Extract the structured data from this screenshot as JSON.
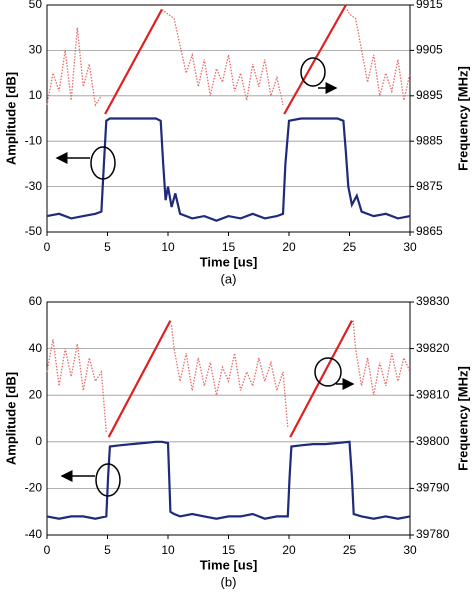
{
  "chart_data": [
    {
      "type": "line",
      "xlabel": "Time [us]",
      "ylabel": "Amplitude [dB]",
      "y2label": "Frequency [MHz]",
      "caption": "(a)",
      "xlim": [
        0,
        30
      ],
      "xticks": [
        0,
        5,
        10,
        15,
        20,
        25,
        30
      ],
      "ylim": [
        -50,
        50
      ],
      "yticks": [
        -50,
        -30,
        -10,
        10,
        30,
        50
      ],
      "y2lim": [
        9865,
        9915
      ],
      "y2ticks": [
        9865,
        9875,
        9885,
        9895,
        9905,
        9915
      ],
      "grid": true,
      "series": [
        {
          "color": "#e86a6a",
          "axis": "y2",
          "style": "dotted",
          "x": [
            0,
            0.5,
            1,
            1.5,
            2,
            2.5,
            3,
            3.5,
            4,
            4.5,
            4.7,
            9.5,
            10,
            10.5,
            11,
            11.5,
            12,
            12.5,
            13,
            13.5,
            14,
            14.5,
            15,
            15.5,
            16,
            16.5,
            17,
            17.5,
            18,
            18.5,
            19,
            19.5,
            19.6,
            24.8,
            25,
            25.5,
            26,
            26.5,
            27,
            27.5,
            28,
            28.5,
            29,
            29.5,
            30
          ],
          "values": [
            9893,
            9900,
            9896,
            9905,
            9894,
            9910,
            9897,
            9902,
            9893,
            9895,
            null,
            9914,
            9913,
            9912,
            9906,
            9900,
            9904,
            9897,
            9903,
            9895,
            9901,
            9898,
            9904,
            9896,
            9900,
            9894,
            9902,
            9897,
            9903,
            9895,
            9899,
            9893,
            null,
            9914,
            9913,
            9912,
            9905,
            9898,
            9904,
            9895,
            9900,
            9896,
            9903,
            9894,
            9900
          ]
        },
        {
          "color": "#e02020",
          "axis": "y2",
          "style": "solid",
          "x": [
            4.8,
            9.5,
            14,
            19.6,
            24.7
          ],
          "values": [
            9891,
            9914,
            null,
            9891,
            9915
          ]
        },
        {
          "color": "#1f2a7a",
          "axis": "y",
          "style": "solid",
          "x": [
            0,
            1,
            2,
            3,
            4,
            4.5,
            4.7,
            4.9,
            5.2,
            6,
            7,
            8,
            9,
            9.4,
            9.6,
            9.8,
            10,
            10.3,
            10.6,
            11,
            12,
            13,
            14,
            15,
            16,
            17,
            18,
            19,
            19.5,
            19.7,
            20,
            21,
            22,
            23,
            24,
            24.5,
            24.7,
            24.9,
            25.2,
            25.6,
            26,
            27,
            28,
            29,
            30
          ],
          "values": [
            -43,
            -42,
            -44,
            -43,
            -42,
            -41,
            -20,
            -1,
            0,
            0,
            0,
            0,
            0,
            -1,
            -20,
            -36,
            -30,
            -39,
            -33,
            -42,
            -44,
            -43,
            -45,
            -43,
            -44,
            -42,
            -44,
            -43,
            -42,
            -20,
            -1,
            0,
            0,
            0,
            0,
            -1,
            -15,
            -30,
            -38,
            -34,
            -41,
            -43,
            -42,
            -44,
            -43
          ]
        }
      ]
    },
    {
      "type": "line",
      "xlabel": "Time [us]",
      "ylabel": "Amplitude [dB]",
      "y2label": "Frequency [MHz]",
      "caption": "(b)",
      "xlim": [
        0,
        30
      ],
      "xticks": [
        0,
        5,
        10,
        15,
        20,
        25,
        30
      ],
      "ylim": [
        -40,
        60
      ],
      "yticks": [
        -40,
        -20,
        0,
        20,
        40,
        60
      ],
      "y2lim": [
        39780,
        39830
      ],
      "y2ticks": [
        39780,
        39790,
        39800,
        39810,
        39820,
        39830
      ],
      "grid": true,
      "series": [
        {
          "color": "#e86a6a",
          "axis": "y2",
          "style": "dotted",
          "x": [
            0,
            0.5,
            1,
            1.5,
            2,
            2.5,
            3,
            3.5,
            4,
            4.5,
            4.9,
            5.05,
            10.3,
            10.5,
            11,
            11.5,
            12,
            12.5,
            13,
            13.5,
            14,
            14.5,
            15,
            15.5,
            16,
            16.5,
            17,
            17.5,
            18,
            18.5,
            19,
            19.5,
            19.9,
            20.05,
            25.3,
            25.5,
            26,
            26.5,
            27,
            27.5,
            28,
            28.5,
            29,
            29.5,
            30
          ],
          "values": [
            39815,
            39822,
            39812,
            39820,
            39814,
            39821,
            39811,
            39818,
            39813,
            39815,
            39802,
            null,
            39825,
            39820,
            39813,
            39819,
            39811,
            39818,
            39812,
            39817,
            39810,
            39816,
            39813,
            39819,
            39811,
            39815,
            39812,
            39818,
            39813,
            39817,
            39811,
            39815,
            39803,
            null,
            39826,
            39820,
            39812,
            39818,
            39810,
            39817,
            39812,
            39819,
            39813,
            39818,
            39815
          ]
        },
        {
          "color": "#e02020",
          "axis": "y2",
          "style": "solid",
          "x": [
            5.1,
            10.2,
            15,
            20.1,
            25.2
          ],
          "values": [
            39801,
            39826,
            null,
            39801,
            39826
          ]
        },
        {
          "color": "#1f2a7a",
          "axis": "y",
          "style": "solid",
          "x": [
            0,
            1,
            2,
            3,
            4,
            4.9,
            5.05,
            5.2,
            6,
            7,
            8,
            9,
            9.5,
            10,
            10.1,
            10.2,
            10.5,
            11,
            12,
            13,
            14,
            15,
            16,
            17,
            18,
            19,
            19.9,
            20.05,
            20.2,
            21,
            22,
            23,
            24,
            25,
            25.2,
            25.35,
            26,
            27,
            28,
            29,
            30
          ],
          "values": [
            -32,
            -33,
            -32,
            -32,
            -33,
            -32,
            -15,
            -2,
            -1.5,
            -1,
            -0.5,
            0,
            0,
            -0.5,
            -15,
            -30,
            -31,
            -32,
            -31,
            -32,
            -33,
            -32,
            -32,
            -31,
            -33,
            -32,
            -32,
            -15,
            -2,
            -1.5,
            -1,
            -1,
            -0.5,
            0,
            -15,
            -31,
            -32,
            -33,
            -32,
            -33,
            -32
          ]
        }
      ]
    }
  ]
}
